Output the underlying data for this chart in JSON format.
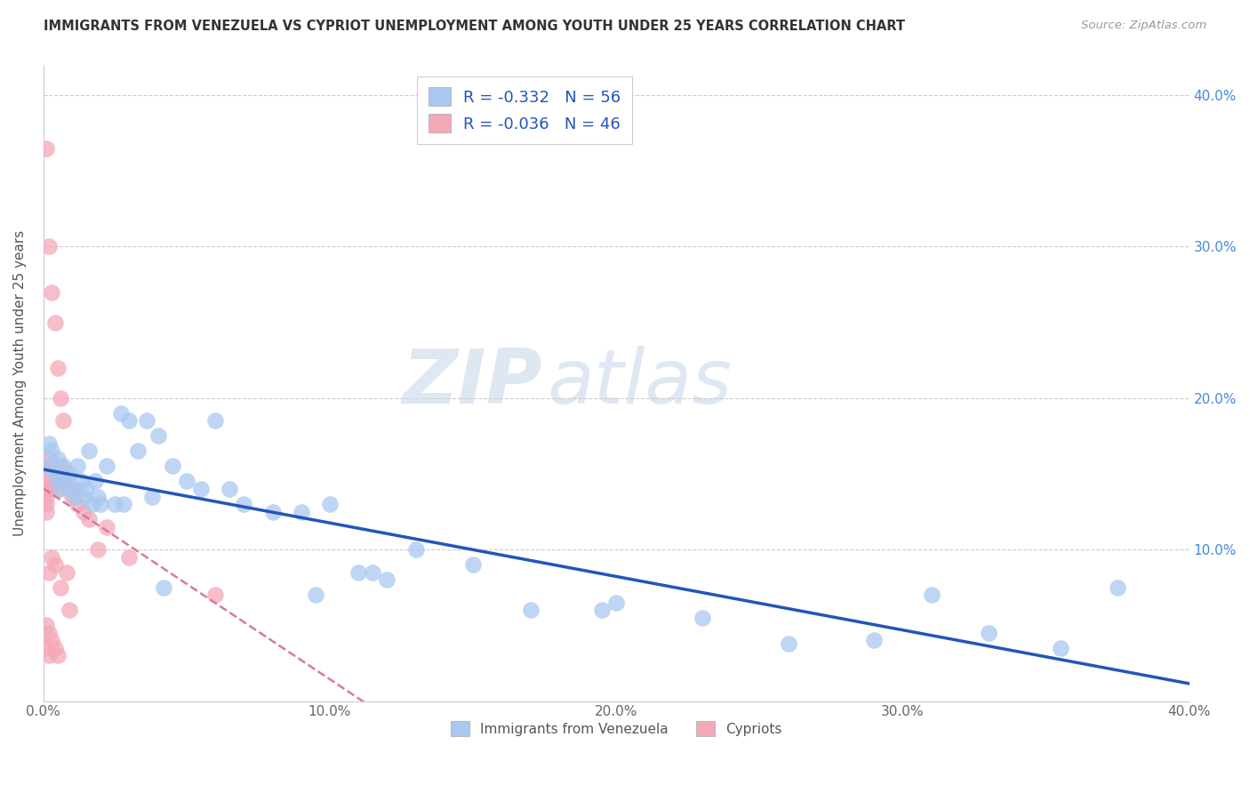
{
  "title": "IMMIGRANTS FROM VENEZUELA VS CYPRIOT UNEMPLOYMENT AMONG YOUTH UNDER 25 YEARS CORRELATION CHART",
  "source": "Source: ZipAtlas.com",
  "ylabel": "Unemployment Among Youth under 25 years",
  "xlim": [
    0.0,
    0.4
  ],
  "ylim": [
    0.0,
    0.42
  ],
  "yticks": [
    0.0,
    0.1,
    0.2,
    0.3,
    0.4
  ],
  "ytick_labels_left": [
    "",
    "",
    "",
    "",
    ""
  ],
  "ytick_labels_right": [
    "",
    "10.0%",
    "20.0%",
    "30.0%",
    "40.0%"
  ],
  "xticks": [
    0.0,
    0.1,
    0.2,
    0.3,
    0.4
  ],
  "xtick_labels": [
    "0.0%",
    "10.0%",
    "20.0%",
    "30.0%",
    "40.0%"
  ],
  "blue_R": "-0.332",
  "blue_N": "56",
  "pink_R": "-0.036",
  "pink_N": "46",
  "legend_label1": "Immigrants from Venezuela",
  "legend_label2": "Cypriots",
  "blue_color": "#a8c8f0",
  "pink_color": "#f4a8b8",
  "blue_line_color": "#2255bb",
  "pink_line_color": "#dd7799",
  "watermark_zip": "ZIP",
  "watermark_atlas": "atlas",
  "blue_scatter_x": [
    0.001,
    0.002,
    0.003,
    0.004,
    0.005,
    0.005,
    0.006,
    0.007,
    0.008,
    0.009,
    0.01,
    0.011,
    0.012,
    0.013,
    0.014,
    0.015,
    0.016,
    0.017,
    0.018,
    0.019,
    0.02,
    0.022,
    0.025,
    0.027,
    0.03,
    0.033,
    0.036,
    0.04,
    0.045,
    0.05,
    0.055,
    0.06,
    0.065,
    0.07,
    0.08,
    0.09,
    0.1,
    0.11,
    0.12,
    0.13,
    0.15,
    0.17,
    0.2,
    0.23,
    0.26,
    0.29,
    0.31,
    0.33,
    0.355,
    0.375,
    0.038,
    0.042,
    0.028,
    0.095,
    0.115,
    0.195
  ],
  "blue_scatter_y": [
    0.155,
    0.17,
    0.165,
    0.15,
    0.145,
    0.16,
    0.14,
    0.155,
    0.145,
    0.15,
    0.14,
    0.135,
    0.155,
    0.145,
    0.135,
    0.14,
    0.165,
    0.13,
    0.145,
    0.135,
    0.13,
    0.155,
    0.13,
    0.19,
    0.185,
    0.165,
    0.185,
    0.175,
    0.155,
    0.145,
    0.14,
    0.185,
    0.14,
    0.13,
    0.125,
    0.125,
    0.13,
    0.085,
    0.08,
    0.1,
    0.09,
    0.06,
    0.065,
    0.055,
    0.038,
    0.04,
    0.07,
    0.045,
    0.035,
    0.075,
    0.135,
    0.075,
    0.13,
    0.07,
    0.085,
    0.06
  ],
  "pink_scatter_x": [
    0.001,
    0.001,
    0.001,
    0.001,
    0.001,
    0.001,
    0.001,
    0.001,
    0.002,
    0.002,
    0.002,
    0.002,
    0.002,
    0.002,
    0.002,
    0.003,
    0.003,
    0.003,
    0.003,
    0.003,
    0.004,
    0.004,
    0.004,
    0.004,
    0.005,
    0.005,
    0.005,
    0.005,
    0.006,
    0.006,
    0.006,
    0.007,
    0.007,
    0.008,
    0.008,
    0.009,
    0.009,
    0.01,
    0.011,
    0.012,
    0.014,
    0.016,
    0.019,
    0.022,
    0.03,
    0.06
  ],
  "pink_scatter_y": [
    0.365,
    0.145,
    0.14,
    0.135,
    0.13,
    0.125,
    0.05,
    0.035,
    0.3,
    0.16,
    0.155,
    0.14,
    0.085,
    0.045,
    0.03,
    0.27,
    0.155,
    0.15,
    0.095,
    0.04,
    0.25,
    0.145,
    0.09,
    0.035,
    0.22,
    0.15,
    0.14,
    0.03,
    0.2,
    0.155,
    0.075,
    0.185,
    0.15,
    0.145,
    0.085,
    0.14,
    0.06,
    0.135,
    0.14,
    0.13,
    0.125,
    0.12,
    0.1,
    0.115,
    0.095,
    0.07
  ]
}
